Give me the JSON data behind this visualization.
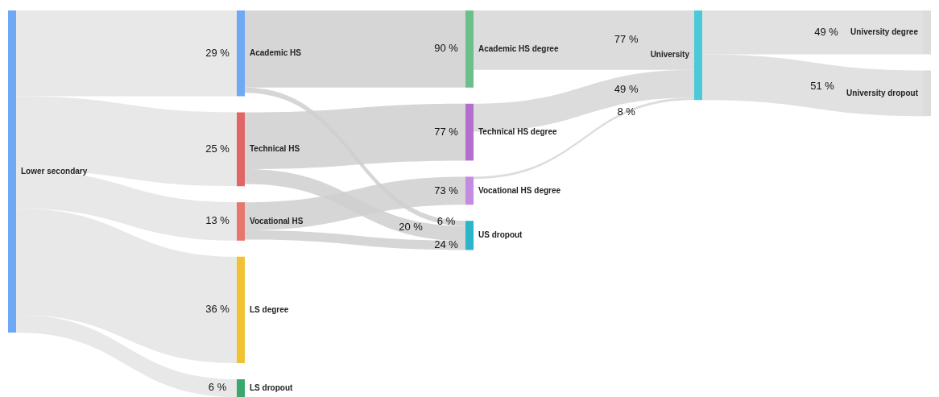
{
  "chart_data": {
    "type": "other",
    "categories": [
      "Lower secondary",
      "Academic HS",
      "Technical HS",
      "Vocational HS",
      "LS degree",
      "LS dropout",
      "Academic HS degree",
      "Technical HS degree",
      "Vocational HS degree",
      "US dropout",
      "University",
      "University degree",
      "University dropout"
    ],
    "colors": [
      "#6fa8f5",
      "#6fa8f5",
      "#e06666",
      "#e8776b",
      "#f1c232",
      "#3aa76d",
      "#6abf8a",
      "#b36fcf",
      "#c58be0",
      "#2bb5c8",
      "#4cc9d9",
      "#dcdcdc",
      "#dcdcdc"
    ],
    "series": [
      {
        "color": "#e4e4e4",
        "values": [
          null,
          29,
          25,
          13,
          36,
          6,
          null,
          null,
          null,
          null,
          null,
          null,
          null
        ],
        "value_labels": [
          null,
          "29 %",
          "25 %",
          "13 %",
          "36 %",
          "6 %",
          null,
          null,
          null,
          null,
          null,
          null,
          null
        ]
      },
      {
        "color": "#cfcfcf",
        "values": [
          null,
          null,
          null,
          null,
          null,
          null,
          90,
          null,
          null,
          6,
          null,
          null,
          null
        ],
        "value_labels": [
          null,
          null,
          null,
          null,
          null,
          null,
          "90 %",
          null,
          null,
          "6 %",
          null,
          null,
          null
        ]
      },
      {
        "color": "#cfcfcf",
        "values": [
          null,
          null,
          null,
          null,
          null,
          null,
          null,
          77,
          null,
          20,
          null,
          null,
          null
        ],
        "value_labels": [
          null,
          null,
          null,
          null,
          null,
          null,
          null,
          "77 %",
          null,
          "20 %",
          null,
          null,
          null
        ]
      },
      {
        "color": "#cfcfcf",
        "values": [
          null,
          null,
          null,
          null,
          null,
          null,
          null,
          null,
          73,
          24,
          null,
          null,
          null
        ],
        "value_labels": [
          null,
          null,
          null,
          null,
          null,
          null,
          null,
          null,
          "73 %",
          "24 %",
          null,
          null,
          null
        ]
      },
      {
        "values": [
          null,
          null,
          null,
          null,
          null,
          null,
          null,
          null,
          null,
          null,
          null,
          null,
          null
        ]
      },
      {
        "values": [
          null,
          null,
          null,
          null,
          null,
          null,
          null,
          null,
          null,
          null,
          null,
          null,
          null
        ]
      },
      {
        "color": "#d6d6d6",
        "values": [
          null,
          null,
          null,
          null,
          null,
          null,
          null,
          null,
          null,
          null,
          77,
          null,
          null
        ],
        "value_labels": [
          null,
          null,
          null,
          null,
          null,
          null,
          null,
          null,
          null,
          null,
          "77 %",
          null,
          null
        ]
      },
      {
        "color": "#d6d6d6",
        "values": [
          null,
          null,
          null,
          null,
          null,
          null,
          null,
          null,
          null,
          null,
          49,
          null,
          null
        ],
        "value_labels": [
          null,
          null,
          null,
          null,
          null,
          null,
          null,
          null,
          null,
          null,
          "49 %",
          null,
          null
        ]
      },
      {
        "color": "#d6d6d6",
        "values": [
          null,
          null,
          null,
          null,
          null,
          null,
          null,
          null,
          null,
          null,
          8,
          null,
          null
        ],
        "value_labels": [
          null,
          null,
          null,
          null,
          null,
          null,
          null,
          null,
          null,
          null,
          "8 %",
          null,
          null
        ]
      },
      {
        "values": [
          null,
          null,
          null,
          null,
          null,
          null,
          null,
          null,
          null,
          null,
          null,
          null,
          null
        ]
      },
      {
        "color": "#dcdcdc",
        "values": [
          null,
          null,
          null,
          null,
          null,
          null,
          null,
          null,
          null,
          null,
          null,
          49,
          51
        ],
        "value_labels": [
          null,
          null,
          null,
          null,
          null,
          null,
          null,
          null,
          null,
          null,
          null,
          "49 %",
          "51 %"
        ]
      },
      {
        "values": [
          null,
          null,
          null,
          null,
          null,
          null,
          null,
          null,
          null,
          null,
          null,
          null,
          null
        ]
      },
      {
        "values": [
          null,
          null,
          null,
          null,
          null,
          null,
          null,
          null,
          null,
          null,
          null,
          null,
          null
        ]
      }
    ]
  }
}
